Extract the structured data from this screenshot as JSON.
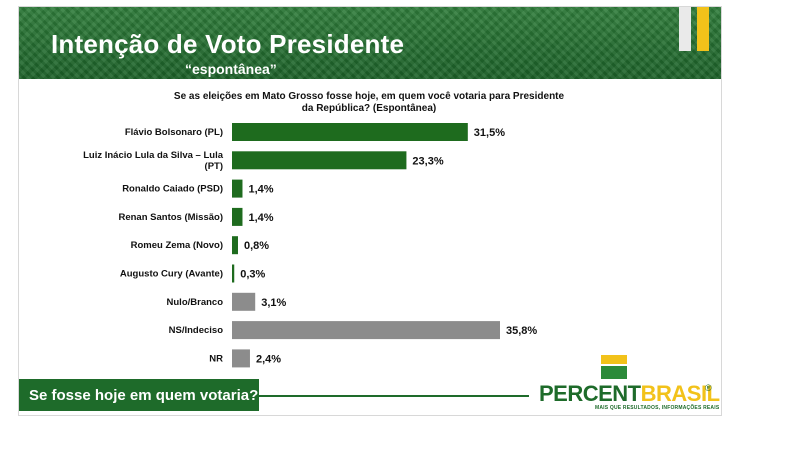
{
  "header": {
    "title": "Intenção de Voto Presidente",
    "subtitle": "“espontânea”"
  },
  "question": "Se as eleições em Mato Grosso fosse hoje, em quem você votaria para Presidente da República? (Espontânea)",
  "footer": {
    "text": "Se fosse hoje em quem votaria?"
  },
  "logo": {
    "part1": "PERCENT",
    "part2": "BRASIL",
    "registered": "®",
    "tagline": "MAIS QUE RESULTADOS, INFORMAÇÕES REAIS"
  },
  "colors": {
    "candidate": "#1e6b1e",
    "other": "#8c8c8c",
    "header_green": "#1c6128",
    "accent_yellow": "#f2c21a"
  },
  "chart_data": {
    "type": "bar",
    "orientation": "horizontal",
    "categories": [
      [
        "Flávio Bolsonaro (PL)"
      ],
      [
        "Luiz Inácio Lula da Silva – Lula",
        "(PT)"
      ],
      [
        "Ronaldo Caiado (PSD)"
      ],
      [
        "Renan Santos (Missão)"
      ],
      [
        "Romeu Zema (Novo)"
      ],
      [
        "Augusto Cury (Avante)"
      ],
      [
        "Nulo/Branco"
      ],
      [
        "NS/Indeciso"
      ],
      [
        "NR"
      ]
    ],
    "values": [
      31.5,
      23.3,
      1.4,
      1.4,
      0.8,
      0.3,
      3.1,
      35.8,
      2.4
    ],
    "value_labels": [
      "31,5%",
      "23,3%",
      "1,4%",
      "1,4%",
      "0,8%",
      "0,3%",
      "3,1%",
      "35,8%",
      "2,4%"
    ],
    "bar_colors": [
      "#1e6b1e",
      "#1e6b1e",
      "#1e6b1e",
      "#1e6b1e",
      "#1e6b1e",
      "#1e6b1e",
      "#8c8c8c",
      "#8c8c8c",
      "#8c8c8c"
    ],
    "xlim": [
      0,
      35.8
    ],
    "grid": false,
    "legend": "none"
  }
}
